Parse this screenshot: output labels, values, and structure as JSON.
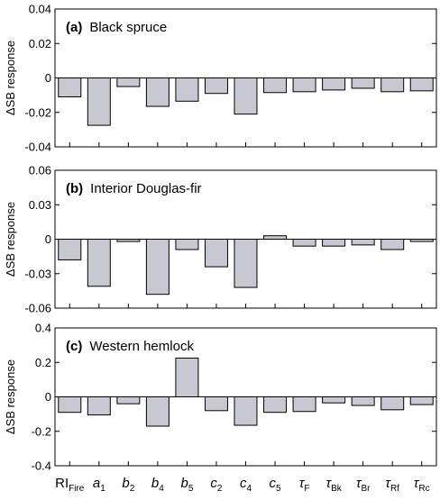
{
  "chart_data": [
    {
      "type": "bar",
      "title": "(a)  Black spruce",
      "ylabel": "ΔSB response",
      "ylim": [
        -0.04,
        0.04
      ],
      "yticks": [
        0.04,
        0.02,
        0,
        -0.02,
        -0.04
      ],
      "ytick_labels": [
        "0.04",
        "0.02",
        "0",
        "-0.02",
        "-0.04"
      ],
      "bar_color": "#c8c8d2",
      "categories": [
        "RI_Fire",
        "a1",
        "b2",
        "b4",
        "b5",
        "c2",
        "c4",
        "c5",
        "tF",
        "tBk",
        "tBr",
        "tRf",
        "tRc"
      ],
      "values": [
        -0.011,
        -0.0275,
        -0.005,
        -0.0165,
        -0.0135,
        -0.009,
        -0.021,
        -0.0085,
        -0.008,
        -0.007,
        -0.006,
        -0.008,
        -0.0075
      ]
    },
    {
      "type": "bar",
      "title": "(b)  Interior Douglas-fir",
      "ylabel": "ΔSB response",
      "ylim": [
        -0.06,
        0.06
      ],
      "yticks": [
        0.06,
        0.03,
        0,
        -0.03,
        -0.06
      ],
      "ytick_labels": [
        "0.06",
        "0.03",
        "0",
        "-0.03",
        "-0.06"
      ],
      "bar_color": "#c8c8d2",
      "categories": [
        "RI_Fire",
        "a1",
        "b2",
        "b4",
        "b5",
        "c2",
        "c4",
        "c5",
        "tF",
        "tBk",
        "tBr",
        "tRf",
        "tRc"
      ],
      "values": [
        -0.018,
        -0.041,
        -0.002,
        -0.048,
        -0.009,
        -0.024,
        -0.042,
        0.003,
        -0.006,
        -0.006,
        -0.005,
        -0.009,
        -0.002
      ]
    },
    {
      "type": "bar",
      "title": "(c)  Western hemlock",
      "ylabel": "ΔSB response",
      "ylim": [
        -0.4,
        0.4
      ],
      "yticks": [
        0.4,
        0.2,
        0,
        -0.2,
        -0.4
      ],
      "ytick_labels": [
        "0.4",
        "0.2",
        "0",
        "-0.2",
        "-0.4"
      ],
      "bar_color": "#c8c8d2",
      "categories": [
        "RI_Fire",
        "a1",
        "b2",
        "b4",
        "b5",
        "c2",
        "c4",
        "c5",
        "tF",
        "tBk",
        "tBr",
        "tRf",
        "tRc"
      ],
      "values": [
        -0.09,
        -0.105,
        -0.04,
        -0.17,
        0.225,
        -0.08,
        -0.165,
        -0.09,
        -0.085,
        -0.035,
        -0.05,
        -0.075,
        -0.045
      ]
    }
  ],
  "x_tick_labels": [
    {
      "main": "RI",
      "sub": "Fire",
      "italic": false
    },
    {
      "main": "a",
      "sub": "1",
      "italic": true
    },
    {
      "main": "b",
      "sub": "2",
      "italic": true
    },
    {
      "main": "b",
      "sub": "4",
      "italic": true
    },
    {
      "main": "b",
      "sub": "5",
      "italic": true
    },
    {
      "main": "c",
      "sub": "2",
      "italic": true
    },
    {
      "main": "c",
      "sub": "4",
      "italic": true
    },
    {
      "main": "c",
      "sub": "5",
      "italic": true
    },
    {
      "main": "τ",
      "sub": "F",
      "italic": true
    },
    {
      "main": "τ",
      "sub": "Bk",
      "italic": true
    },
    {
      "main": "τ",
      "sub": "Br",
      "italic": true
    },
    {
      "main": "τ",
      "sub": "Rf",
      "italic": true
    },
    {
      "main": "τ",
      "sub": "Rc",
      "italic": true
    }
  ]
}
